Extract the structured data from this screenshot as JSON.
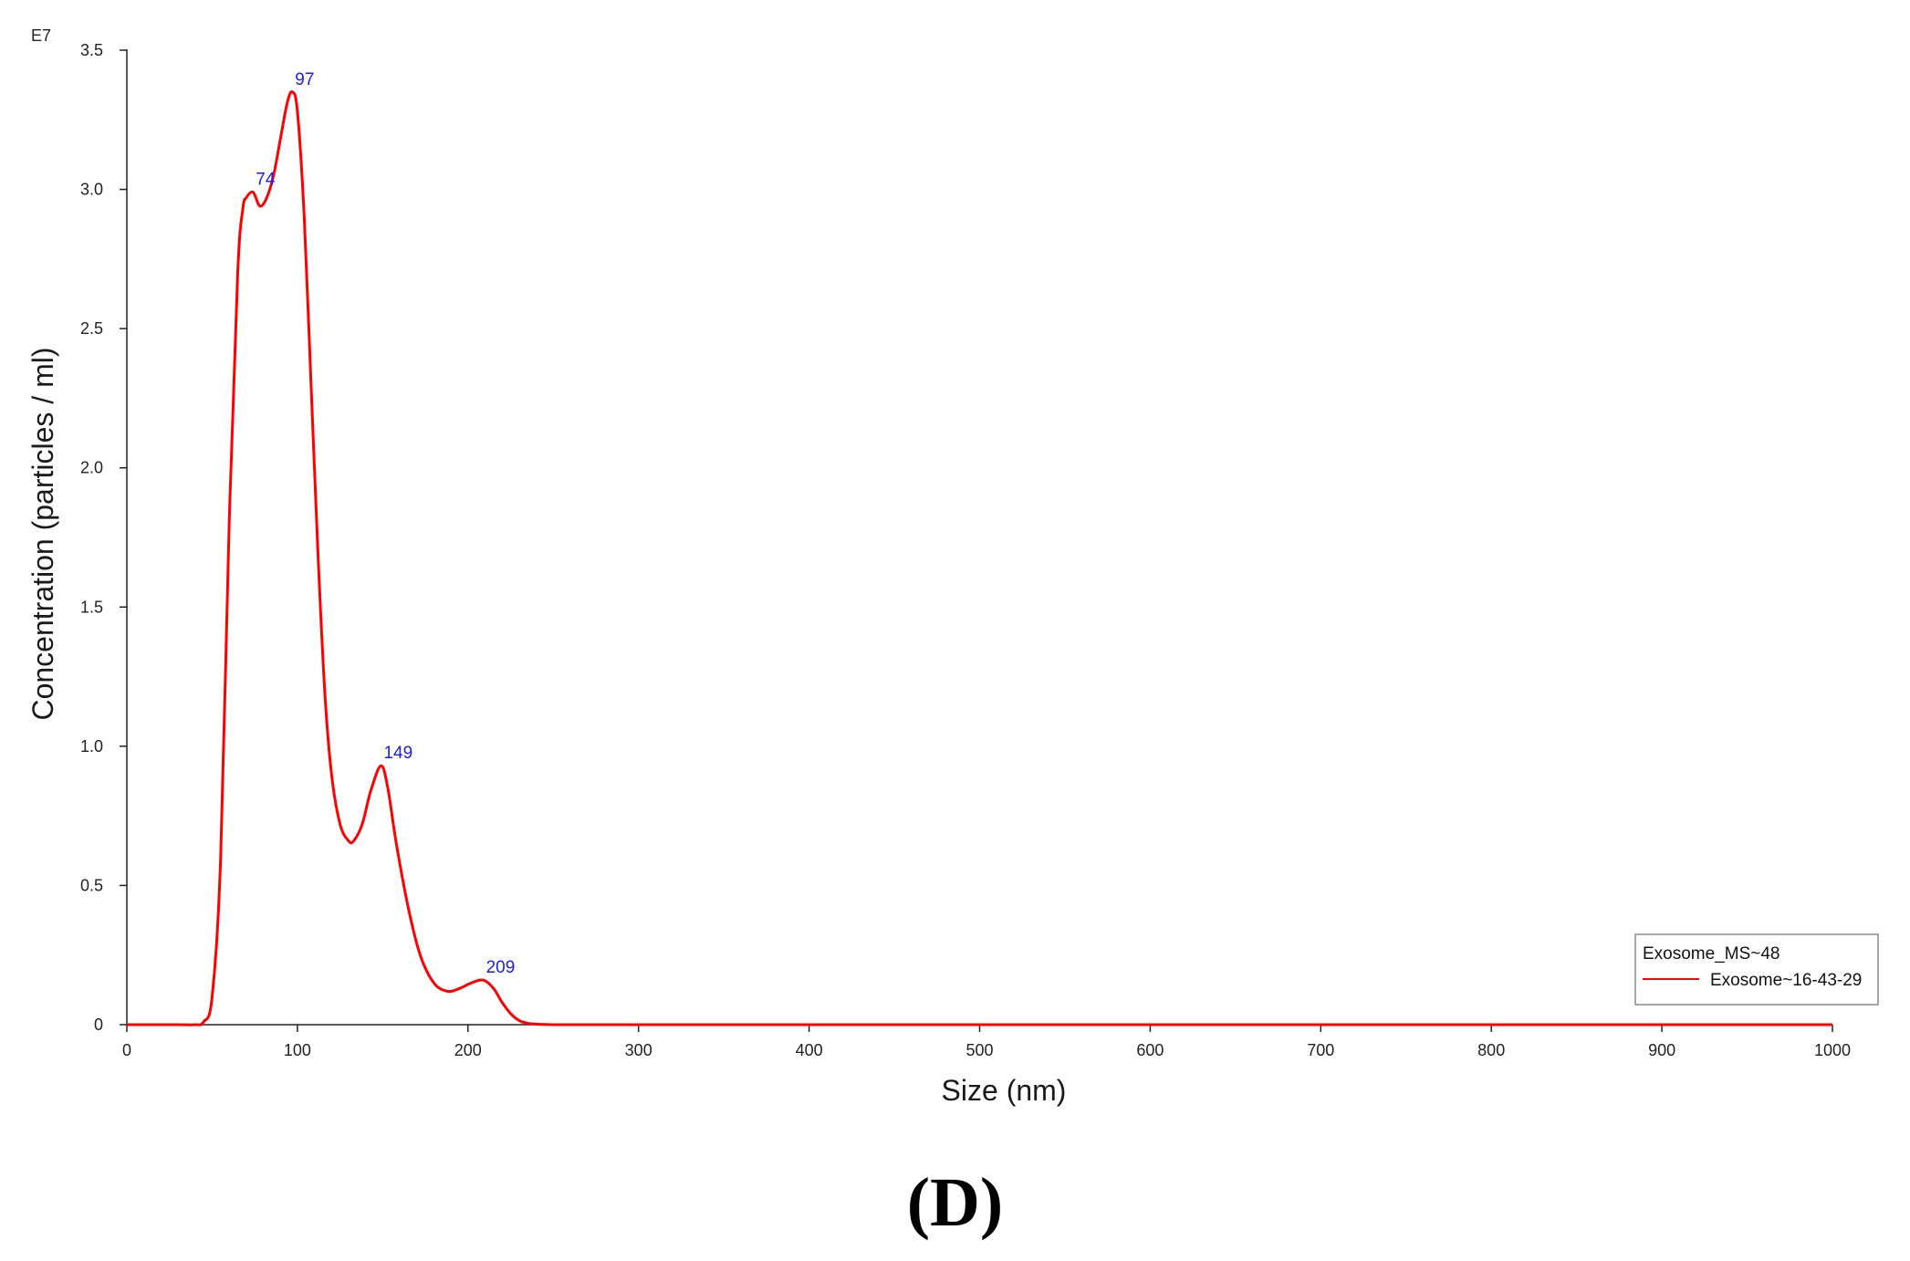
{
  "chart_data": {
    "type": "line",
    "title": "",
    "xlabel": "Size (nm)",
    "ylabel": "Concentration (particles / ml)",
    "y_exponent_label": "E7",
    "xlim": [
      0,
      1000
    ],
    "ylim": [
      0,
      3.5
    ],
    "x_ticks": [
      0,
      100,
      200,
      300,
      400,
      500,
      600,
      700,
      800,
      900,
      1000
    ],
    "x_tick_labels": [
      "0",
      "100",
      "200",
      "300",
      "400",
      "500",
      "600",
      "700",
      "800",
      "900",
      "1000"
    ],
    "y_ticks": [
      0,
      0.5,
      1.0,
      1.5,
      2.0,
      2.5,
      3.0,
      3.5
    ],
    "y_tick_labels": [
      "0",
      "0.5",
      "1.0",
      "1.5",
      "2.0",
      "2.5",
      "3.0",
      "3.5"
    ],
    "grid": false,
    "legend": {
      "title": "Exosome_MS~48",
      "placement": "bottom-right",
      "entries": [
        "Exosome~16-43-29"
      ]
    },
    "series": [
      {
        "name": "Exosome~16-43-29",
        "color": "#ff0000",
        "x": [
          0,
          30,
          40,
          45,
          50,
          55,
          60,
          65,
          68,
          70,
          74,
          78,
          82,
          86,
          90,
          94,
          97,
          100,
          104,
          108,
          112,
          116,
          120,
          125,
          130,
          133,
          138,
          143,
          149,
          153,
          158,
          165,
          172,
          180,
          188,
          195,
          202,
          209,
          215,
          220,
          225,
          230,
          235,
          240,
          250,
          260,
          300,
          400,
          500,
          600,
          700,
          800,
          900,
          1000
        ],
        "y": [
          0,
          0,
          0,
          0.01,
          0.1,
          0.6,
          1.8,
          2.7,
          2.93,
          2.97,
          2.99,
          2.94,
          2.97,
          3.05,
          3.18,
          3.31,
          3.35,
          3.28,
          2.9,
          2.3,
          1.7,
          1.2,
          0.9,
          0.72,
          0.66,
          0.66,
          0.72,
          0.84,
          0.93,
          0.85,
          0.65,
          0.42,
          0.25,
          0.15,
          0.12,
          0.13,
          0.15,
          0.16,
          0.13,
          0.08,
          0.04,
          0.015,
          0.005,
          0.002,
          0,
          0,
          0,
          0,
          0,
          0,
          0,
          0,
          0,
          0
        ]
      }
    ],
    "peak_labels": [
      {
        "x": 74,
        "y": 2.99,
        "text": "74"
      },
      {
        "x": 97,
        "y": 3.35,
        "text": "97"
      },
      {
        "x": 149,
        "y": 0.93,
        "text": "149"
      },
      {
        "x": 209,
        "y": 0.16,
        "text": "209"
      }
    ]
  },
  "caption": "(D)"
}
